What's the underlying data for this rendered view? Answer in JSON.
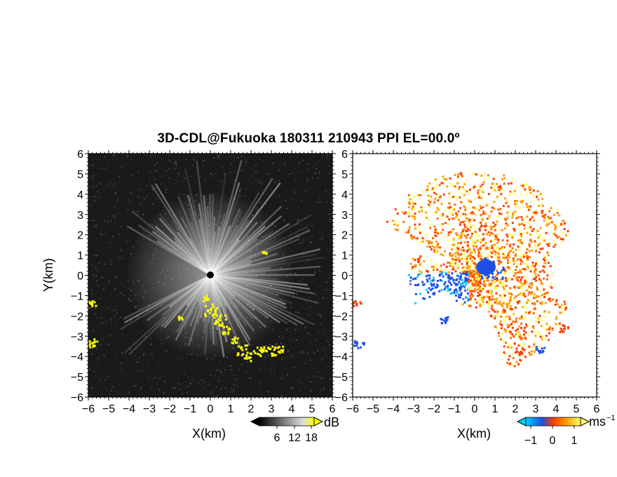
{
  "title": "3D-CDL@Fukuoka 180311 210943 PPI EL=00.0º",
  "chart_data": [
    {
      "type": "heatmap",
      "panel": "left",
      "xlabel": "X(km)",
      "ylabel": "Y(km)",
      "xlim": [
        -6,
        6
      ],
      "ylim": [
        -6,
        6
      ],
      "xticks": [
        "-6",
        "-5",
        "-4",
        "-3",
        "-2",
        "-1",
        "0",
        "1",
        "2",
        "3",
        "4",
        "5",
        "6"
      ],
      "yticks": [
        "6",
        "5",
        "4",
        "3",
        "2",
        "1",
        "0",
        "-1",
        "-2",
        "-3",
        "-4",
        "-5",
        "-6"
      ],
      "colorbar": {
        "unit": "dB",
        "ticks": [
          "6",
          "12",
          "18"
        ],
        "colors": [
          "#000000",
          "#ffffff",
          "#ffff00"
        ]
      },
      "background_color": "#1a1a1a"
    },
    {
      "type": "heatmap",
      "panel": "right",
      "xlabel": "X(km)",
      "xlim": [
        -6,
        6
      ],
      "ylim": [
        -6,
        6
      ],
      "xticks": [
        "-6",
        "-5",
        "-4",
        "-3",
        "-2",
        "-1",
        "0",
        "1",
        "2",
        "3",
        "4",
        "5",
        "6"
      ],
      "yticks": [
        "6",
        "5",
        "4",
        "3",
        "2",
        "1",
        "0",
        "-1",
        "-2",
        "-3",
        "-4",
        "-5",
        "-6"
      ],
      "colorbar": {
        "unit": "ms",
        "unit_exp": "−1",
        "ticks": [
          "−1",
          "0",
          "1"
        ],
        "colors": [
          "#00d0ff",
          "#1f4fe0",
          "#ff3a00",
          "#ffa000",
          "#ffff66"
        ]
      },
      "background_color": "#ffffff"
    }
  ]
}
